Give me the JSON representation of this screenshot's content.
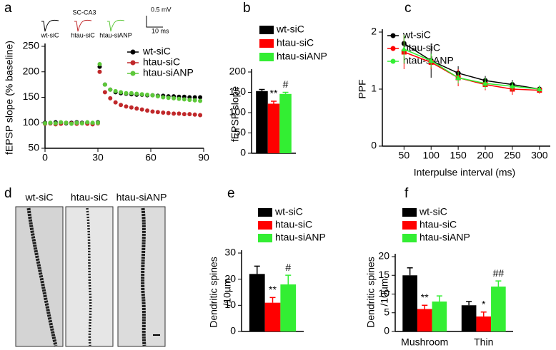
{
  "chart_data": [
    {
      "type": "scatter",
      "panel": "a",
      "ylabel": "fEPSP slope (% baseline)",
      "inset": {
        "title": "SC-CA3",
        "scale_y": "0.5 mV",
        "scale_x": "10 ms",
        "traces": [
          "wt-siC",
          "htau-siC",
          "htau-siANP"
        ]
      },
      "x": [
        0,
        3,
        6,
        9,
        12,
        15,
        18,
        21,
        24,
        27,
        30,
        31,
        34,
        37,
        40,
        43,
        46,
        49,
        52,
        55,
        58,
        61,
        64,
        67,
        70,
        73,
        76,
        79,
        82,
        85,
        88
      ],
      "xlim": [
        0,
        90
      ],
      "xticks": [
        0,
        30,
        60,
        90
      ],
      "ylim": [
        50,
        250
      ],
      "yticks": [
        50,
        100,
        150,
        200,
        250
      ],
      "series": [
        {
          "name": "wt-siC",
          "color": "#000000",
          "values": [
            100,
            99,
            101,
            100,
            99,
            100,
            101,
            100,
            100,
            99,
            101,
            210,
            175,
            165,
            160,
            158,
            157,
            156,
            155,
            155,
            154,
            154,
            153,
            153,
            152,
            152,
            151,
            151,
            150,
            150,
            150
          ]
        },
        {
          "name": "htau-siC",
          "color": "#c0282a",
          "values": [
            98,
            99,
            97,
            98,
            100,
            99,
            98,
            99,
            98,
            97,
            99,
            200,
            160,
            148,
            140,
            135,
            132,
            130,
            128,
            126,
            124,
            122,
            121,
            120,
            119,
            118,
            118,
            117,
            117,
            116,
            115
          ]
        },
        {
          "name": "htau-siANP",
          "color": "#5dc83a",
          "values": [
            99,
            100,
            99,
            101,
            100,
            98,
            100,
            99,
            101,
            100,
            100,
            215,
            175,
            165,
            162,
            160,
            158,
            158,
            157,
            156,
            155,
            154,
            152,
            150,
            149,
            148,
            147,
            146,
            145,
            144,
            143
          ]
        }
      ]
    },
    {
      "type": "bar",
      "panel": "b",
      "ylabel": "fEPSP slope",
      "categories": [
        null
      ],
      "ylim": [
        0,
        200
      ],
      "yticks": [
        0,
        50,
        100,
        150,
        200
      ],
      "series": [
        {
          "name": "wt-siC",
          "color": "#000000",
          "values": [
            153
          ],
          "errors": [
            4
          ]
        },
        {
          "name": "htau-siC",
          "color": "#ff0000",
          "values": [
            122
          ],
          "errors": [
            6
          ]
        },
        {
          "name": "htau-siANP",
          "color": "#33ee33",
          "values": [
            146
          ],
          "errors": [
            4
          ]
        }
      ],
      "annotations": [
        {
          "text": "**",
          "series": 1,
          "category": 0
        },
        {
          "text": "#",
          "series": 2,
          "category": 0
        }
      ]
    },
    {
      "type": "line",
      "panel": "c",
      "ylabel": "PPF",
      "xlabel": "Interpulse interval (ms)",
      "x": [
        50,
        100,
        150,
        200,
        250,
        300
      ],
      "xlim": [
        10,
        320
      ],
      "xticks": [
        50,
        100,
        150,
        200,
        250,
        300
      ],
      "ylim": [
        0,
        2
      ],
      "yticks": [
        0,
        1,
        2
      ],
      "series": [
        {
          "name": "wt-siC",
          "color": "#000000",
          "values": [
            1.8,
            1.5,
            1.28,
            1.15,
            1.08,
            1.0
          ],
          "errors": [
            0.15,
            0.3,
            0.12,
            0.08,
            0.08,
            0.06
          ]
        },
        {
          "name": "htau-siC",
          "color": "#ff0000",
          "values": [
            1.65,
            1.47,
            1.2,
            1.08,
            1.0,
            0.98
          ],
          "errors": [
            0.3,
            0.12,
            0.15,
            0.1,
            0.1,
            0.06
          ]
        },
        {
          "name": "htau-siANP",
          "color": "#33ee33",
          "values": [
            1.7,
            1.5,
            1.2,
            1.1,
            1.05,
            1.0
          ],
          "errors": [
            0.25,
            0.12,
            0.1,
            0.1,
            0.08,
            0.06
          ]
        }
      ]
    },
    {
      "type": "bar",
      "panel": "e",
      "ylabel": [
        "Dendritic spines",
        "/10µm"
      ],
      "categories": [
        null
      ],
      "ylim": [
        0,
        30
      ],
      "yticks": [
        0,
        10,
        20,
        30
      ],
      "series": [
        {
          "name": "wt-siC",
          "color": "#000000",
          "values": [
            22
          ],
          "errors": [
            3
          ]
        },
        {
          "name": "htau-siC",
          "color": "#ff0000",
          "values": [
            11
          ],
          "errors": [
            2
          ]
        },
        {
          "name": "htau-siANP",
          "color": "#33ee33",
          "values": [
            18
          ],
          "errors": [
            3.5
          ]
        }
      ],
      "annotations": [
        {
          "text": "**",
          "series": 1,
          "category": 0
        },
        {
          "text": "#",
          "series": 2,
          "category": 0
        }
      ]
    },
    {
      "type": "bar",
      "panel": "f",
      "ylabel": [
        "Dendritic spines",
        "/10µm"
      ],
      "categories": [
        "Mushroom",
        "Thin"
      ],
      "ylim": [
        0,
        20
      ],
      "yticks": [
        0,
        5,
        10,
        15,
        20
      ],
      "series": [
        {
          "name": "wt-siC",
          "color": "#000000",
          "values": [
            15,
            7
          ],
          "errors": [
            2,
            1
          ]
        },
        {
          "name": "htau-siC",
          "color": "#ff0000",
          "values": [
            6,
            4
          ],
          "errors": [
            1,
            1.2
          ]
        },
        {
          "name": "htau-siANP",
          "color": "#33ee33",
          "values": [
            8,
            12
          ],
          "errors": [
            1.5,
            1.5
          ]
        }
      ],
      "annotations": [
        {
          "text": "**",
          "series": 1,
          "category": 0
        },
        {
          "text": "*",
          "series": 1,
          "category": 1
        },
        {
          "text": "##",
          "series": 2,
          "category": 1
        }
      ]
    }
  ],
  "panel_d": {
    "panel": "d",
    "labels": [
      "wt-siC",
      "htau-siC",
      "htau-siANP"
    ]
  }
}
